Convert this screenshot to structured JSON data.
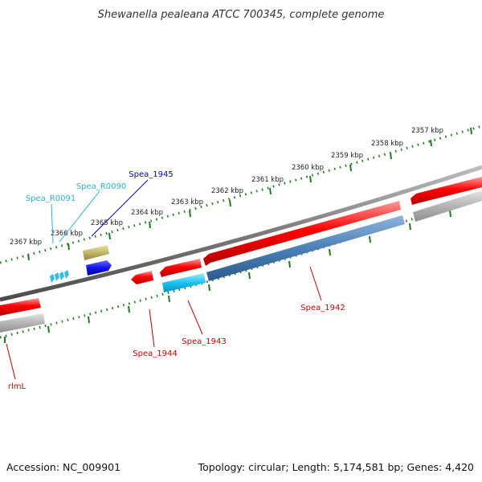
{
  "title": "Shewanella pealeana ATCC 700345, complete genome",
  "footer": {
    "accession": "Accession: NC_009901",
    "info": "Topology: circular; Length: 5,174,581 bp; Genes: 4,420"
  },
  "ticks": [
    "2357 kbp",
    "2358 kbp",
    "2359 kbp",
    "2360 kbp",
    "2361 kbp",
    "2362 kbp",
    "2363 kbp",
    "2364 kbp",
    "2365 kbp",
    "2366 kbp",
    "2367 kbp"
  ],
  "gene_labels": {
    "spea_1945": "Spea_1945",
    "spea_r0090": "Spea_R0090",
    "spea_r0091": "Spea_R0091",
    "spea_1942": "Spea_1942",
    "spea_1943": "Spea_1943",
    "spea_1944": "Spea_1944",
    "rlml": "rlmL"
  },
  "colors": {
    "cds": "#ff0000",
    "rrna": "#c2b86a",
    "trna": "#33bbee",
    "blue_feature": "#1111ee",
    "cog_steel": "#4a80b8",
    "cog_gray": "#b4b4b4",
    "cog_cyan": "#19c4f2",
    "backbone": "#7a7a7a",
    "ticks": "#1e7a1e",
    "label_red": "#cc0000",
    "label_cyan": "#2ab2d8",
    "label_blue": "#0000cc"
  }
}
